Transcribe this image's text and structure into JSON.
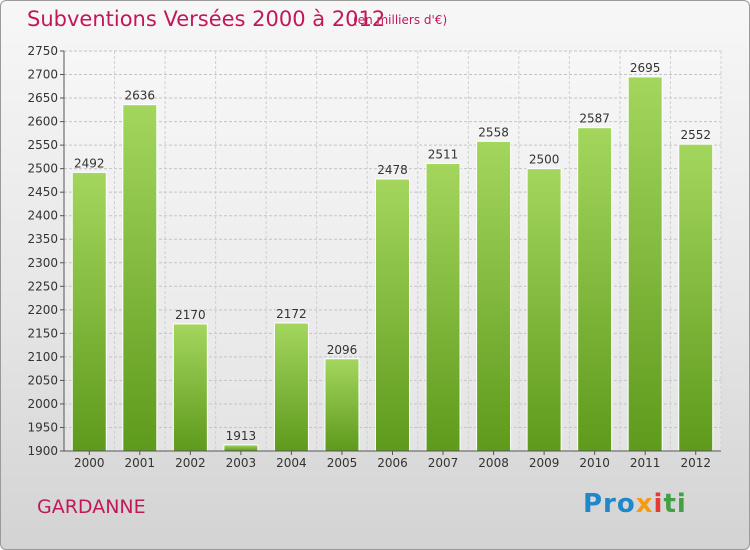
{
  "title": "Subventions Versées 2000 à 2012",
  "subtitle": "(en milliers d'€)",
  "town": "GARDANNE",
  "logo": {
    "p1": "Pro",
    "p2": "x",
    "p3": "i",
    "p4": "ti"
  },
  "colors": {
    "bar_top": "#a4d65e",
    "bar_bottom": "#5e9a1c",
    "text_accent": "#c2185b"
  },
  "chart_data": {
    "type": "bar",
    "categories": [
      "2000",
      "2001",
      "2002",
      "2003",
      "2004",
      "2005",
      "2006",
      "2007",
      "2008",
      "2009",
      "2010",
      "2011",
      "2012"
    ],
    "values": [
      2492,
      2636,
      2170,
      1913,
      2172,
      2096,
      2478,
      2511,
      2558,
      2500,
      2587,
      2695,
      2552
    ],
    "ylim": [
      1900,
      2750
    ],
    "yticks": [
      1900,
      1950,
      2000,
      2050,
      2100,
      2150,
      2200,
      2250,
      2300,
      2350,
      2400,
      2450,
      2500,
      2550,
      2600,
      2650,
      2700,
      2750
    ],
    "grid": true,
    "title": "Subventions Versées 2000 à 2012",
    "xlabel": "",
    "ylabel": ""
  }
}
